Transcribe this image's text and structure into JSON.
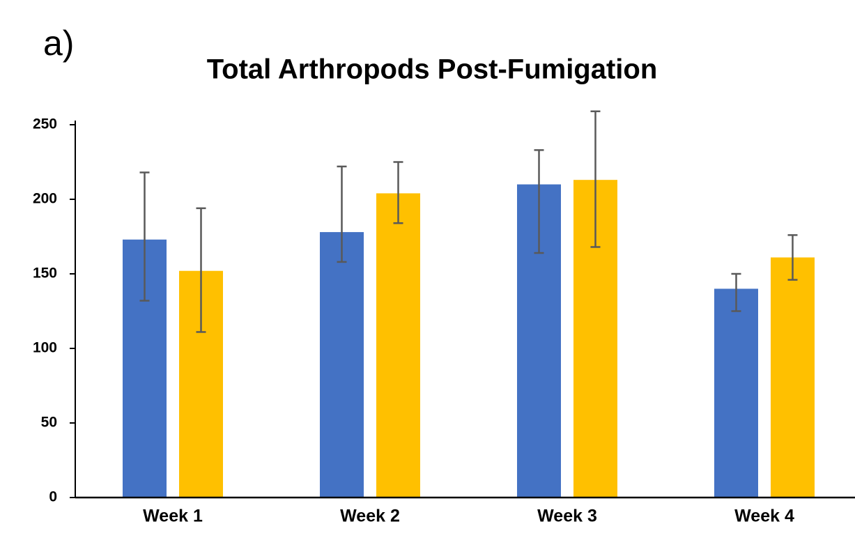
{
  "panel_label": "a)",
  "chart_data": {
    "type": "bar",
    "title": "Total Arthropods Post-Fumigation",
    "categories": [
      "Week 1",
      "Week 2",
      "Week 3",
      "Week 4"
    ],
    "series": [
      {
        "color": "#4472c4",
        "values": [
          173,
          178,
          210,
          140
        ],
        "err_plus": [
          45,
          44,
          23,
          10
        ],
        "err_minus": [
          41,
          20,
          46,
          15
        ]
      },
      {
        "color": "#ffc000",
        "values": [
          152,
          204,
          213,
          161
        ],
        "err_plus": [
          42,
          21,
          46,
          15
        ],
        "err_minus": [
          41,
          20,
          45,
          15
        ]
      }
    ],
    "ylim": [
      0,
      250
    ],
    "yticks": [
      0,
      50,
      100,
      150,
      200,
      250
    ],
    "grid": false
  }
}
